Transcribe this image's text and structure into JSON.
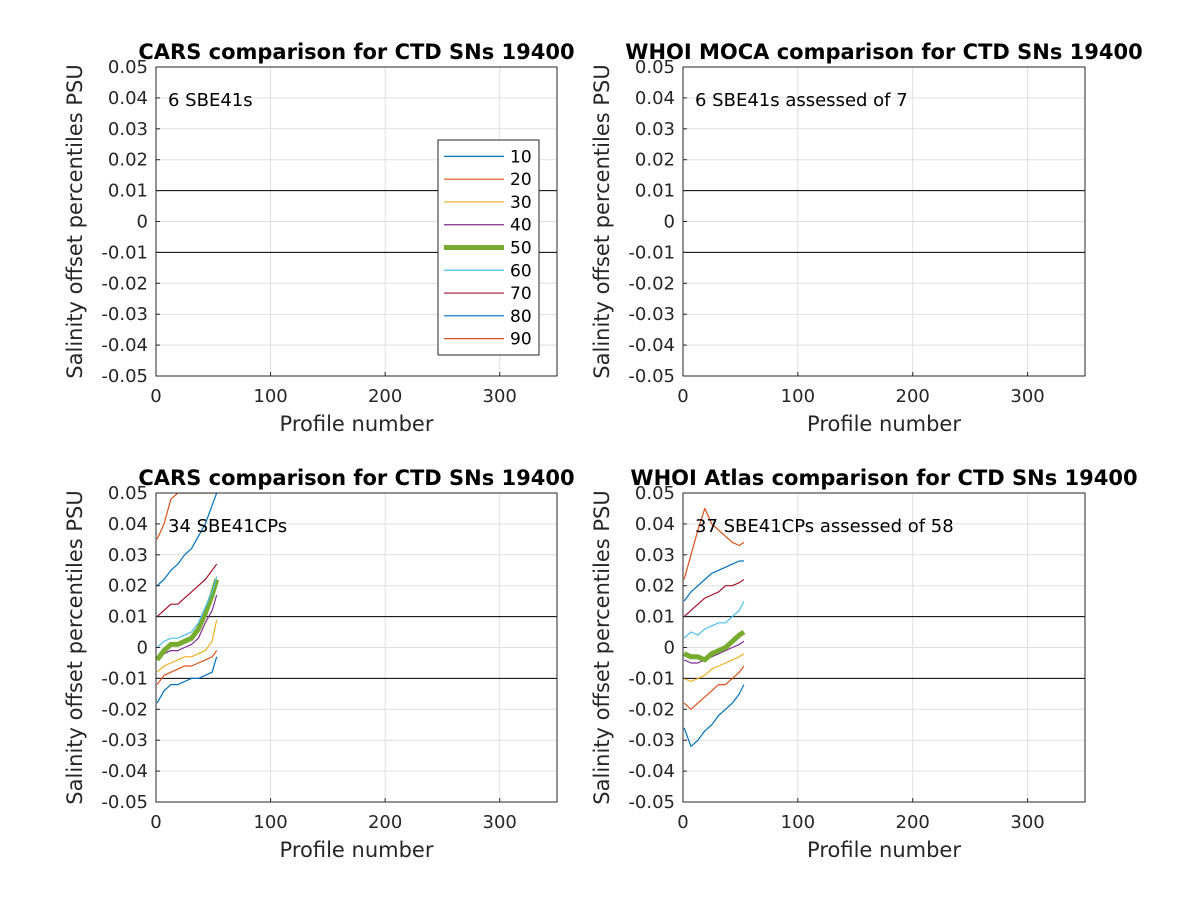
{
  "chart_data": [
    {
      "type": "line",
      "title": "CARS comparison for CTD SNs 19400",
      "xlabel": "Profile number",
      "ylabel": "Salinity offset percentiles PSU",
      "xlim": [
        0,
        350
      ],
      "ylim": [
        -0.05,
        0.05
      ],
      "xticks": [
        0,
        100,
        200,
        300
      ],
      "yticks": [
        0.05,
        0.04,
        0.03,
        0.02,
        0.01,
        0,
        -0.01,
        -0.02,
        -0.03,
        -0.04,
        -0.05
      ],
      "ytick_labels": [
        "0.05",
        "0.04",
        "0.03",
        "0.02",
        "0.01",
        "0",
        "-0.01",
        "-0.02",
        "-0.03",
        "-0.04",
        "-0.05"
      ],
      "reference_lines": [
        0.01,
        -0.01
      ],
      "annotation": "6 SBE41s",
      "grid": true,
      "legend": {
        "placement": "right",
        "entries": [
          {
            "label": "10",
            "color": "#0072BD"
          },
          {
            "label": "20",
            "color": "#D95319"
          },
          {
            "label": "30",
            "color": "#EDB120"
          },
          {
            "label": "40",
            "color": "#7E2F8E"
          },
          {
            "label": "50",
            "color": "#77AC30"
          },
          {
            "label": "60",
            "color": "#4DBEEE"
          },
          {
            "label": "70",
            "color": "#A2142F"
          },
          {
            "label": "80",
            "color": "#0072BD"
          },
          {
            "label": "90",
            "color": "#D95319"
          }
        ]
      },
      "series": []
    },
    {
      "type": "line",
      "title": "WHOI MOCA comparison for CTD SNs 19400",
      "xlabel": "Profile number",
      "ylabel": "Salinity offset percentiles PSU",
      "xlim": [
        0,
        350
      ],
      "ylim": [
        -0.05,
        0.05
      ],
      "xticks": [
        0,
        100,
        200,
        300
      ],
      "yticks": [
        0.05,
        0.04,
        0.03,
        0.02,
        0.01,
        0,
        -0.01,
        -0.02,
        -0.03,
        -0.04,
        -0.05
      ],
      "ytick_labels": [
        "0.05",
        "0.04",
        "0.03",
        "0.02",
        "0.01",
        "0",
        "-0.01",
        "-0.02",
        "-0.03",
        "-0.04",
        "-0.05"
      ],
      "reference_lines": [
        0.01,
        -0.01
      ],
      "annotation": "6 SBE41s assessed of 7",
      "grid": true,
      "series": []
    },
    {
      "type": "line",
      "title": "CARS comparison for CTD SNs 19400",
      "xlabel": "Profile number",
      "ylabel": "Salinity offset percentiles PSU",
      "xlim": [
        0,
        350
      ],
      "ylim": [
        -0.05,
        0.05
      ],
      "xticks": [
        0,
        100,
        200,
        300
      ],
      "yticks": [
        0.05,
        0.04,
        0.03,
        0.02,
        0.01,
        0,
        -0.01,
        -0.02,
        -0.03,
        -0.04,
        -0.05
      ],
      "ytick_labels": [
        "0.05",
        "0.04",
        "0.03",
        "0.02",
        "0.01",
        "0",
        "-0.01",
        "-0.02",
        "-0.03",
        "-0.04",
        "-0.05"
      ],
      "reference_lines": [
        0.01,
        -0.01
      ],
      "annotation": "34 SBE41CPs",
      "grid": true,
      "x": [
        1,
        7,
        13,
        19,
        25,
        31,
        37,
        43,
        49,
        53
      ],
      "series": [
        {
          "name": "10",
          "color": "#0072BD",
          "values": [
            -0.018,
            -0.014,
            -0.012,
            -0.012,
            -0.011,
            -0.01,
            -0.01,
            -0.009,
            -0.008,
            -0.003
          ]
        },
        {
          "name": "20",
          "color": "#D95319",
          "values": [
            -0.012,
            -0.009,
            -0.008,
            -0.007,
            -0.006,
            -0.006,
            -0.005,
            -0.004,
            -0.003,
            -0.001
          ]
        },
        {
          "name": "30",
          "color": "#EDB120",
          "values": [
            -0.008,
            -0.006,
            -0.005,
            -0.004,
            -0.003,
            -0.003,
            -0.002,
            -0.001,
            0.002,
            0.009
          ]
        },
        {
          "name": "40",
          "color": "#7E2F8E",
          "values": [
            -0.004,
            -0.002,
            -0.001,
            -0.001,
            0.0,
            0.001,
            0.003,
            0.008,
            0.012,
            0.017
          ]
        },
        {
          "name": "50",
          "color": "#77AC30",
          "values": [
            -0.004,
            -0.001,
            0.001,
            0.001,
            0.002,
            0.003,
            0.006,
            0.011,
            0.017,
            0.022
          ]
        },
        {
          "name": "60",
          "color": "#4DBEEE",
          "values": [
            0.0,
            0.002,
            0.003,
            0.003,
            0.004,
            0.005,
            0.008,
            0.013,
            0.018,
            0.023
          ]
        },
        {
          "name": "70",
          "color": "#A2142F",
          "values": [
            0.01,
            0.012,
            0.014,
            0.014,
            0.016,
            0.018,
            0.02,
            0.022,
            0.025,
            0.027
          ]
        },
        {
          "name": "80",
          "color": "#0072BD",
          "values": [
            0.02,
            0.022,
            0.025,
            0.027,
            0.03,
            0.032,
            0.036,
            0.04,
            0.046,
            0.05
          ]
        },
        {
          "name": "90",
          "color": "#D95319",
          "values": [
            0.035,
            0.04,
            0.048,
            0.05,
            0.05,
            0.05,
            0.05,
            0.05,
            0.05,
            0.05
          ]
        }
      ]
    },
    {
      "type": "line",
      "title": "WHOI Atlas comparison for CTD SNs 19400",
      "xlabel": "Profile number",
      "ylabel": "Salinity offset percentiles PSU",
      "xlim": [
        0,
        350
      ],
      "ylim": [
        -0.05,
        0.05
      ],
      "xticks": [
        0,
        100,
        200,
        300
      ],
      "yticks": [
        0.05,
        0.04,
        0.03,
        0.02,
        0.01,
        0,
        -0.01,
        -0.02,
        -0.03,
        -0.04,
        -0.05
      ],
      "ytick_labels": [
        "0.05",
        "0.04",
        "0.03",
        "0.02",
        "0.01",
        "0",
        "-0.01",
        "-0.02",
        "-0.03",
        "-0.04",
        "-0.05"
      ],
      "reference_lines": [
        0.01,
        -0.01
      ],
      "annotation": "37 SBE41CPs assessed of 58",
      "grid": true,
      "x": [
        1,
        7,
        13,
        19,
        25,
        31,
        37,
        43,
        49,
        53
      ],
      "series": [
        {
          "name": "10",
          "color": "#0072BD",
          "values": [
            -0.026,
            -0.032,
            -0.03,
            -0.027,
            -0.025,
            -0.022,
            -0.02,
            -0.018,
            -0.015,
            -0.012
          ]
        },
        {
          "name": "20",
          "color": "#D95319",
          "values": [
            -0.018,
            -0.02,
            -0.018,
            -0.016,
            -0.014,
            -0.012,
            -0.012,
            -0.01,
            -0.008,
            -0.006
          ]
        },
        {
          "name": "30",
          "color": "#EDB120",
          "values": [
            -0.01,
            -0.011,
            -0.01,
            -0.009,
            -0.007,
            -0.006,
            -0.005,
            -0.004,
            -0.003,
            -0.002
          ]
        },
        {
          "name": "40",
          "color": "#7E2F8E",
          "values": [
            -0.004,
            -0.005,
            -0.005,
            -0.004,
            -0.003,
            -0.002,
            -0.001,
            0.0,
            0.001,
            0.002
          ]
        },
        {
          "name": "50",
          "color": "#77AC30",
          "values": [
            -0.002,
            -0.003,
            -0.003,
            -0.004,
            -0.002,
            -0.001,
            0.0,
            0.002,
            0.004,
            0.005
          ]
        },
        {
          "name": "60",
          "color": "#4DBEEE",
          "values": [
            0.003,
            0.005,
            0.004,
            0.006,
            0.007,
            0.008,
            0.008,
            0.01,
            0.012,
            0.015
          ]
        },
        {
          "name": "70",
          "color": "#A2142F",
          "values": [
            0.01,
            0.012,
            0.014,
            0.016,
            0.017,
            0.018,
            0.02,
            0.02,
            0.021,
            0.022
          ]
        },
        {
          "name": "80",
          "color": "#0072BD",
          "values": [
            0.015,
            0.018,
            0.02,
            0.022,
            0.024,
            0.025,
            0.026,
            0.027,
            0.028,
            0.028
          ]
        },
        {
          "name": "90",
          "color": "#D95319",
          "values": [
            0.022,
            0.03,
            0.038,
            0.045,
            0.04,
            0.038,
            0.036,
            0.034,
            0.033,
            0.034
          ]
        }
      ]
    }
  ]
}
